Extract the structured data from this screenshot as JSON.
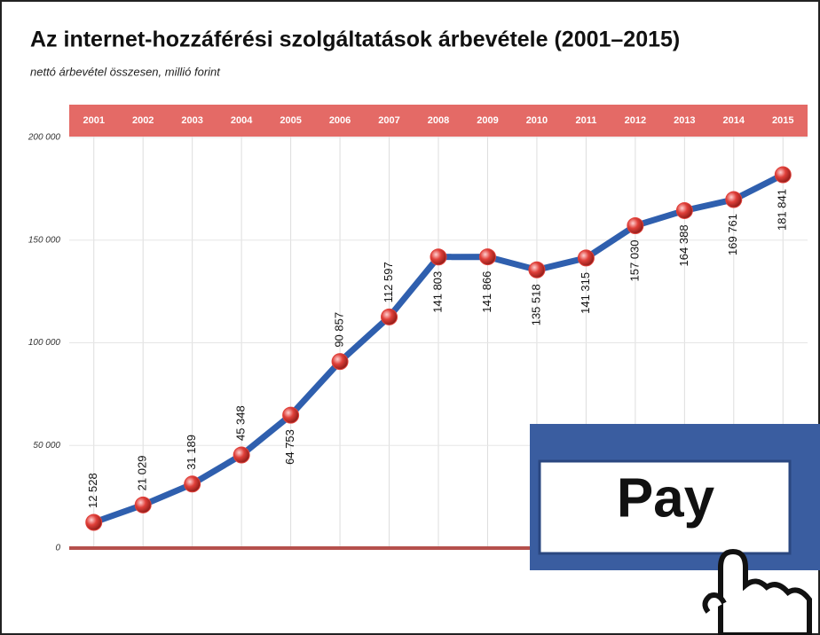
{
  "chart_data": {
    "type": "line",
    "title": "Az internet-hozzáférési szolgáltatások árbevétele (2001–2015)",
    "subtitle": "nettó árbevétel összesen, millió forint",
    "categories": [
      "2001",
      "2002",
      "2003",
      "2004",
      "2005",
      "2006",
      "2007",
      "2008",
      "2009",
      "2010",
      "2011",
      "2012",
      "2013",
      "2014",
      "2015"
    ],
    "values": [
      12528,
      21029,
      31189,
      45348,
      64753,
      90857,
      112597,
      141803,
      141866,
      135518,
      141315,
      157030,
      164388,
      169761,
      181841
    ],
    "value_labels": [
      "12 528",
      "21 029",
      "31 189",
      "45 348",
      "64 753",
      "90 857",
      "112 597",
      "141 803",
      "141 866",
      "135 518",
      "141 315",
      "157 030",
      "164 388",
      "169 761",
      "181 841"
    ],
    "color": "#2f5fae",
    "marker_color": "#e0403a",
    "ylim": [
      0,
      200000
    ],
    "yticks": [
      0,
      {
        "value": 50000,
        "label": "50 000"
      },
      {
        "value": 100000,
        "label": "100 000"
      },
      {
        "value": 150000,
        "label": "150 000"
      },
      {
        "value": 200000,
        "label": "200 000"
      }
    ],
    "grid": true,
    "annotation": "Pay"
  }
}
